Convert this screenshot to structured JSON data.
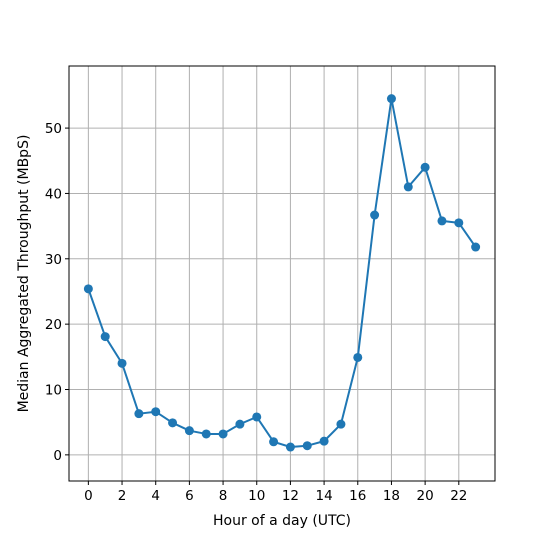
{
  "chart_data": {
    "type": "line",
    "title": "",
    "xlabel": "Hour of a day (UTC)",
    "ylabel": "Median Aggregated Throughput (MBpS)",
    "x": [
      0,
      1,
      2,
      3,
      4,
      5,
      6,
      7,
      8,
      9,
      10,
      11,
      12,
      13,
      14,
      15,
      16,
      17,
      18,
      19,
      20,
      21,
      22,
      23
    ],
    "series": [
      {
        "values": [
          25.4,
          18.1,
          14.0,
          6.3,
          6.6,
          4.9,
          3.7,
          3.2,
          3.2,
          4.7,
          5.8,
          2.0,
          1.2,
          1.4,
          2.1,
          4.7,
          14.9,
          36.7,
          54.5,
          41.0,
          44.0,
          35.8,
          35.5,
          31.8
        ],
        "color": "#1f77b4",
        "marker": "circle"
      }
    ],
    "xlim": [
      -1.15,
      24.15
    ],
    "ylim": [
      -4.0,
      59.5
    ],
    "xticks": [
      0,
      2,
      4,
      6,
      8,
      10,
      12,
      14,
      16,
      18,
      20,
      22
    ],
    "yticks": [
      0,
      10,
      20,
      30,
      40,
      50
    ],
    "grid": true
  }
}
